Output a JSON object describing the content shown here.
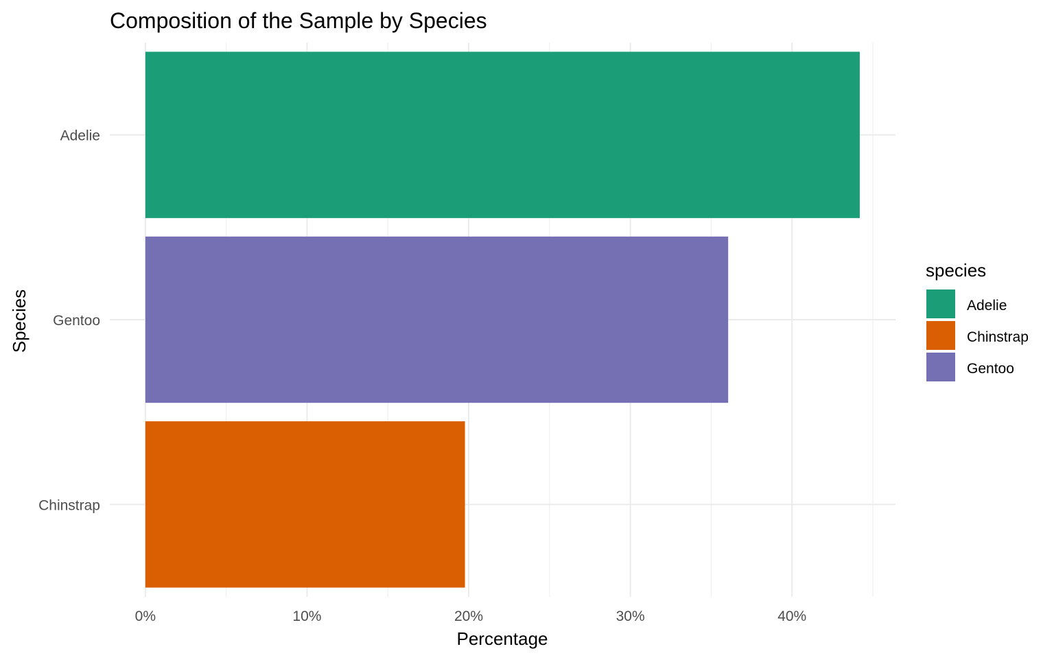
{
  "chart_data": {
    "type": "bar",
    "orientation": "horizontal",
    "title": "Composition of the Sample by Species",
    "xlabel": "Percentage",
    "ylabel": "Species",
    "categories": [
      "Adelie",
      "Gentoo",
      "Chinstrap"
    ],
    "values": [
      44.19,
      36.05,
      19.77
    ],
    "colors": [
      "#1b9e77",
      "#7570b3",
      "#d95f02"
    ],
    "xlim": [
      -2.2,
      46.4
    ],
    "x_ticks": [
      0,
      10,
      20,
      30,
      40
    ],
    "x_tick_labels": [
      "0%",
      "10%",
      "20%",
      "30%",
      "40%"
    ],
    "x_minor_ticks": [
      5,
      15,
      25,
      35,
      45
    ],
    "grid": true,
    "legend": {
      "title": "species",
      "position": "right",
      "entries": [
        {
          "label": "Adelie",
          "color": "#1b9e77"
        },
        {
          "label": "Chinstrap",
          "color": "#d95f02"
        },
        {
          "label": "Gentoo",
          "color": "#7570b3"
        }
      ]
    }
  }
}
